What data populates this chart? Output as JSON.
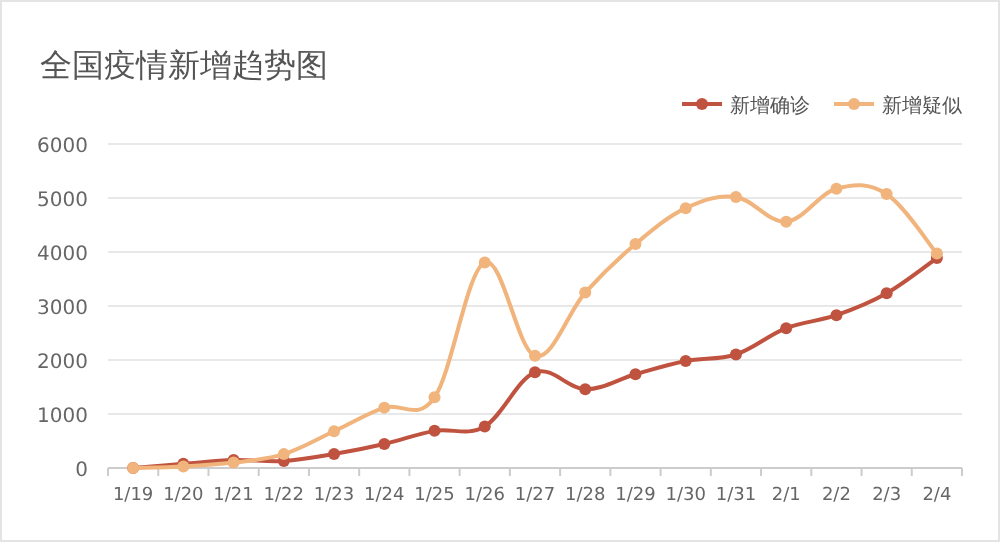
{
  "chart_data": {
    "type": "line",
    "title": "全国疫情新增趋势图",
    "categories": [
      "1/19",
      "1/20",
      "1/21",
      "1/22",
      "1/23",
      "1/24",
      "1/25",
      "1/26",
      "1/27",
      "1/28",
      "1/29",
      "1/30",
      "1/31",
      "2/1",
      "2/2",
      "2/3",
      "2/4"
    ],
    "series": [
      {
        "name": "新增确诊",
        "color": "#c0533f",
        "values": [
          0,
          77,
          149,
          131,
          259,
          444,
          688,
          769,
          1771,
          1459,
          1737,
          1982,
          2102,
          2590,
          2829,
          3235,
          3887
        ]
      },
      {
        "name": "新增疑似",
        "color": "#f0b47c",
        "values": [
          0,
          27,
          100,
          257,
          680,
          1118,
          1309,
          3806,
          2077,
          3248,
          4148,
          4812,
          5019,
          4562,
          5173,
          5072,
          3971
        ]
      }
    ],
    "ylim": [
      0,
      6000
    ],
    "yticks": [
      0,
      1000,
      2000,
      3000,
      4000,
      5000,
      6000
    ],
    "grid": "y",
    "legend": "top right",
    "marker": "circle",
    "line_style": "solid"
  }
}
